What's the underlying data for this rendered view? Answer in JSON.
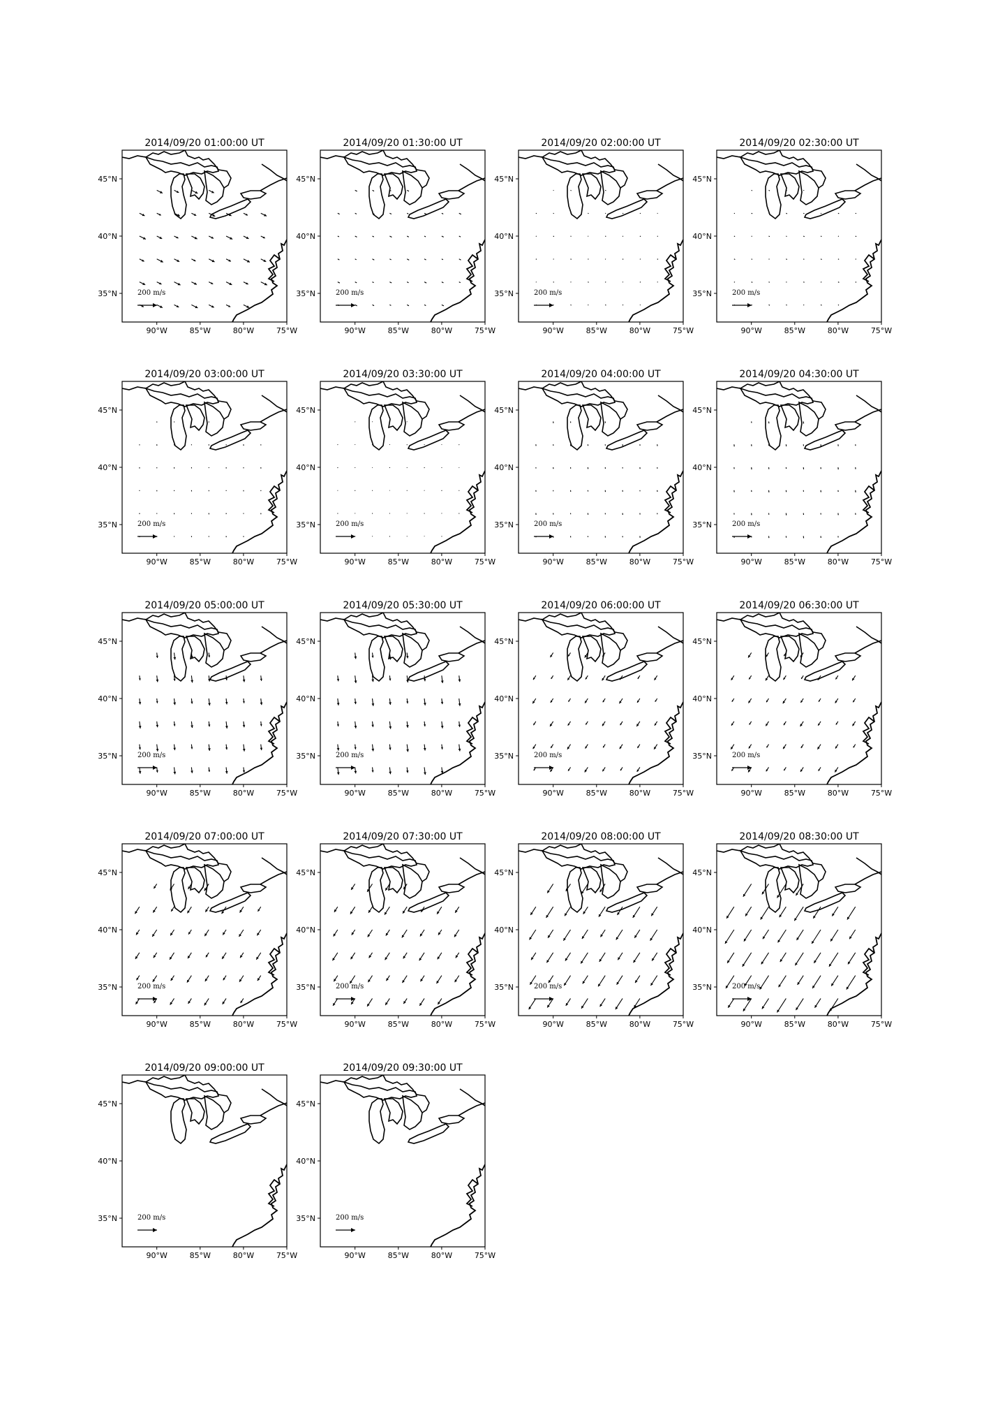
{
  "figure": {
    "units": "m/s",
    "scale_label": "200 m/s",
    "scale_value": 200,
    "lon_ticks": [
      -90,
      -85,
      -80,
      -75
    ],
    "lon_tick_labels": [
      "90°W",
      "85°W",
      "80°W",
      "75°W"
    ],
    "lat_ticks": [
      45,
      40,
      35
    ],
    "lat_tick_labels": [
      "45°N",
      "40°N",
      "35°N"
    ],
    "extent": {
      "lon": [
        -94,
        -75
      ],
      "lat": [
        32.5,
        47.5
      ]
    },
    "colors": {
      "arrow": "#000000",
      "coast": "#000000",
      "frame": "#000000"
    }
  },
  "chart_data": {
    "type": "quiver-map",
    "panels": [
      {
        "title": "2014/09/20 01:00:00 UT",
        "level": 0.3,
        "dir": "se"
      },
      {
        "title": "2014/09/20 01:30:00 UT",
        "level": 0.1,
        "dir": "se"
      },
      {
        "title": "2014/09/20 02:00:00 UT",
        "level": 0.04,
        "dir": "se"
      },
      {
        "title": "2014/09/20 02:30:00 UT",
        "level": 0.05,
        "dir": "se"
      },
      {
        "title": "2014/09/20 03:00:00 UT",
        "level": 0.05,
        "dir": "s"
      },
      {
        "title": "2014/09/20 03:30:00 UT",
        "level": 0.03,
        "dir": "s"
      },
      {
        "title": "2014/09/20 04:00:00 UT",
        "level": 0.07,
        "dir": "s"
      },
      {
        "title": "2014/09/20 04:30:00 UT",
        "level": 0.09,
        "dir": "s"
      },
      {
        "title": "2014/09/20 05:00:00 UT",
        "level": 0.3,
        "dir": "s"
      },
      {
        "title": "2014/09/20 05:30:00 UT",
        "level": 0.32,
        "dir": "s"
      },
      {
        "title": "2014/09/20 06:00:00 UT",
        "level": 0.25,
        "dir": "sw"
      },
      {
        "title": "2014/09/20 06:30:00 UT",
        "level": 0.25,
        "dir": "sw"
      },
      {
        "title": "2014/09/20 07:00:00 UT",
        "level": 0.35,
        "dir": "sw"
      },
      {
        "title": "2014/09/20 07:30:00 UT",
        "level": 0.4,
        "dir": "sw"
      },
      {
        "title": "2014/09/20 08:00:00 UT",
        "level": 0.55,
        "dir": "sw"
      },
      {
        "title": "2014/09/20 08:30:00 UT",
        "level": 0.7,
        "dir": "sw"
      },
      {
        "title": "2014/09/20 09:00:00 UT",
        "level": 0.0,
        "dir": "none"
      },
      {
        "title": "2014/09/20 09:30:00 UT",
        "level": 0.0,
        "dir": "none"
      }
    ],
    "grid_lons": [
      -92,
      -90,
      -88,
      -86,
      -84,
      -82,
      -80,
      -78
    ],
    "grid_lats": [
      44,
      42,
      40,
      38,
      36,
      34
    ]
  }
}
